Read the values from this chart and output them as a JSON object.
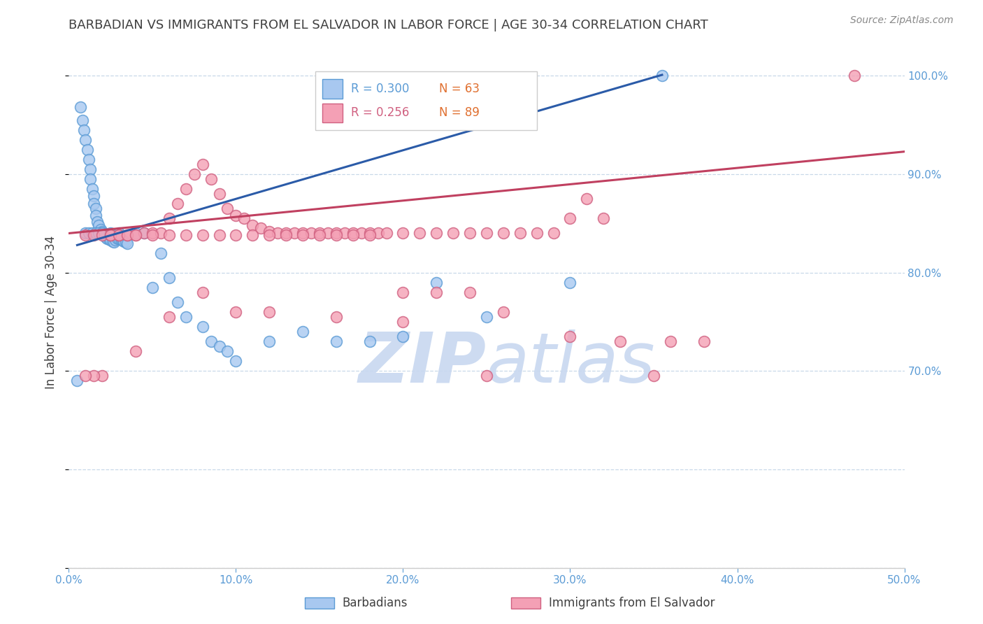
{
  "title": "BARBADIAN VS IMMIGRANTS FROM EL SALVADOR IN LABOR FORCE | AGE 30-34 CORRELATION CHART",
  "source": "Source: ZipAtlas.com",
  "ylabel": "In Labor Force | Age 30-34",
  "xlim": [
    0.0,
    0.5
  ],
  "ylim": [
    0.5,
    1.02
  ],
  "xticks": [
    0.0,
    0.1,
    0.2,
    0.3,
    0.4,
    0.5
  ],
  "xlabels": [
    "0.0%",
    "10.0%",
    "20.0%",
    "30.0%",
    "40.0%",
    "50.0%"
  ],
  "yticks": [
    0.7,
    0.8,
    0.9,
    1.0
  ],
  "ylabels": [
    "70.0%",
    "80.0%",
    "90.0%",
    "100.0%"
  ],
  "blue_fill": "#A8C8F0",
  "blue_edge": "#5B9BD5",
  "blue_line": "#2B5BA8",
  "pink_fill": "#F4A0B5",
  "pink_edge": "#D06080",
  "pink_line": "#C04060",
  "axis_label_color": "#5B9BD5",
  "watermark_color": "#C8D8F0",
  "title_color": "#404040",
  "source_color": "#888888",
  "grid_color": "#C8D8E8",
  "legend_R_blue_color": "#5B9BD5",
  "legend_N_blue_color": "#E07030",
  "legend_R_pink_color": "#D06080",
  "legend_N_pink_color": "#E07030",
  "blue_x": [
    0.005,
    0.007,
    0.008,
    0.009,
    0.01,
    0.011,
    0.012,
    0.013,
    0.013,
    0.014,
    0.015,
    0.015,
    0.016,
    0.016,
    0.017,
    0.018,
    0.019,
    0.02,
    0.02,
    0.021,
    0.022,
    0.023,
    0.024,
    0.025,
    0.026,
    0.027,
    0.028,
    0.029,
    0.03,
    0.031,
    0.032,
    0.033,
    0.034,
    0.035,
    0.01,
    0.012,
    0.014,
    0.016,
    0.018,
    0.02,
    0.025,
    0.03,
    0.04,
    0.045,
    0.05,
    0.055,
    0.06,
    0.065,
    0.07,
    0.08,
    0.085,
    0.09,
    0.095,
    0.1,
    0.12,
    0.14,
    0.16,
    0.18,
    0.2,
    0.22,
    0.25,
    0.3,
    0.355
  ],
  "blue_y": [
    0.69,
    0.968,
    0.955,
    0.945,
    0.935,
    0.925,
    0.915,
    0.905,
    0.895,
    0.885,
    0.878,
    0.87,
    0.865,
    0.858,
    0.852,
    0.848,
    0.844,
    0.842,
    0.84,
    0.838,
    0.836,
    0.835,
    0.834,
    0.833,
    0.832,
    0.831,
    0.833,
    0.835,
    0.835,
    0.834,
    0.833,
    0.832,
    0.831,
    0.83,
    0.84,
    0.84,
    0.84,
    0.84,
    0.84,
    0.84,
    0.84,
    0.84,
    0.84,
    0.84,
    0.785,
    0.82,
    0.795,
    0.77,
    0.755,
    0.745,
    0.73,
    0.725,
    0.72,
    0.71,
    0.73,
    0.74,
    0.73,
    0.73,
    0.735,
    0.79,
    0.755,
    0.79,
    1.0
  ],
  "pink_x": [
    0.01,
    0.015,
    0.02,
    0.025,
    0.03,
    0.035,
    0.04,
    0.045,
    0.05,
    0.055,
    0.06,
    0.065,
    0.07,
    0.075,
    0.08,
    0.085,
    0.09,
    0.095,
    0.1,
    0.105,
    0.11,
    0.115,
    0.12,
    0.125,
    0.13,
    0.135,
    0.14,
    0.145,
    0.15,
    0.155,
    0.16,
    0.165,
    0.17,
    0.175,
    0.18,
    0.185,
    0.19,
    0.2,
    0.21,
    0.22,
    0.23,
    0.24,
    0.25,
    0.26,
    0.27,
    0.28,
    0.29,
    0.3,
    0.31,
    0.32,
    0.025,
    0.03,
    0.035,
    0.04,
    0.05,
    0.06,
    0.07,
    0.08,
    0.09,
    0.1,
    0.11,
    0.12,
    0.13,
    0.14,
    0.15,
    0.16,
    0.17,
    0.18,
    0.2,
    0.22,
    0.24,
    0.26,
    0.2,
    0.3,
    0.33,
    0.36,
    0.38,
    0.35,
    0.25,
    0.16,
    0.12,
    0.1,
    0.08,
    0.06,
    0.04,
    0.02,
    0.015,
    0.01,
    0.47
  ],
  "pink_y": [
    0.838,
    0.838,
    0.838,
    0.838,
    0.838,
    0.838,
    0.838,
    0.84,
    0.84,
    0.84,
    0.855,
    0.87,
    0.885,
    0.9,
    0.91,
    0.895,
    0.88,
    0.865,
    0.858,
    0.855,
    0.848,
    0.845,
    0.842,
    0.84,
    0.84,
    0.84,
    0.84,
    0.84,
    0.84,
    0.84,
    0.84,
    0.84,
    0.84,
    0.84,
    0.84,
    0.84,
    0.84,
    0.84,
    0.84,
    0.84,
    0.84,
    0.84,
    0.84,
    0.84,
    0.84,
    0.84,
    0.84,
    0.855,
    0.875,
    0.855,
    0.838,
    0.838,
    0.838,
    0.838,
    0.838,
    0.838,
    0.838,
    0.838,
    0.838,
    0.838,
    0.838,
    0.838,
    0.838,
    0.838,
    0.838,
    0.838,
    0.838,
    0.838,
    0.78,
    0.78,
    0.78,
    0.76,
    0.75,
    0.735,
    0.73,
    0.73,
    0.73,
    0.695,
    0.695,
    0.755,
    0.76,
    0.76,
    0.78,
    0.755,
    0.72,
    0.695,
    0.695,
    0.695,
    1.0
  ],
  "blue_line_x": [
    0.005,
    0.355
  ],
  "blue_line_y": [
    0.828,
    1.001
  ],
  "pink_line_x": [
    0.0,
    0.5
  ],
  "pink_line_y": [
    0.84,
    0.923
  ]
}
